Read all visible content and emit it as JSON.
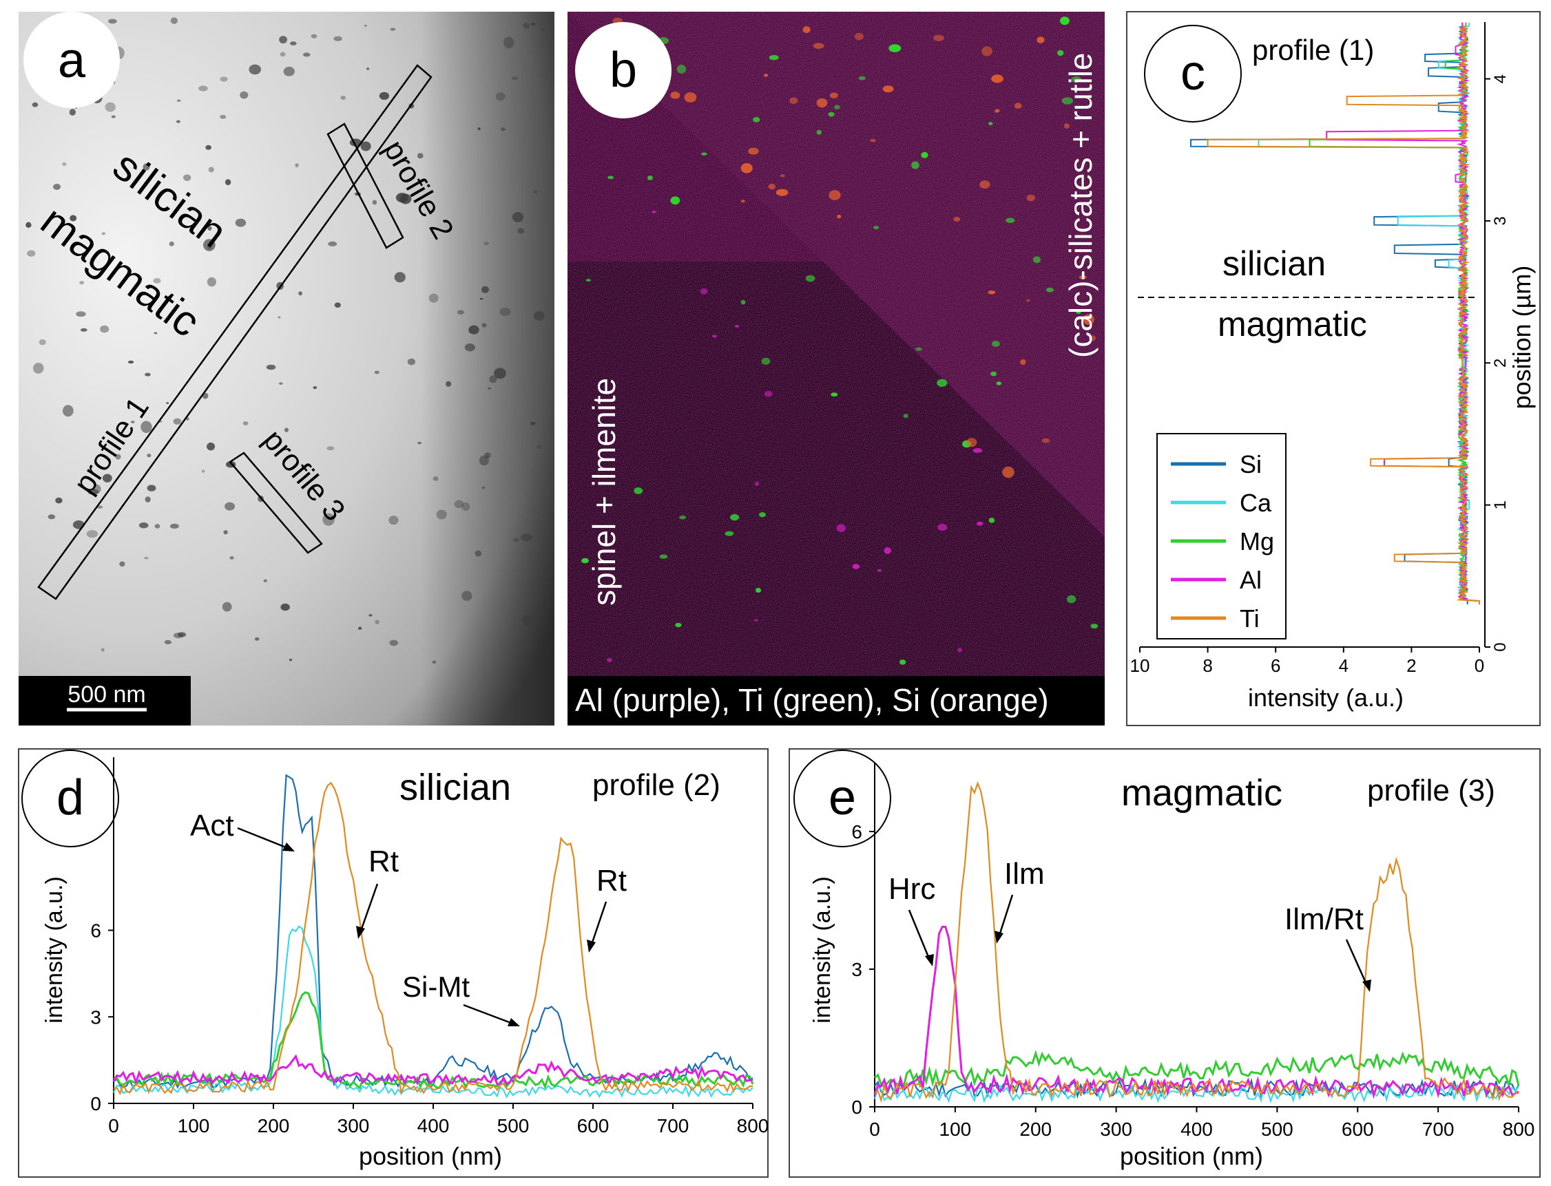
{
  "panel_a": {
    "letter": "a",
    "zone_upper": "silician",
    "zone_lower": "magmatic",
    "profile1": "profile 1",
    "profile2": "profile 2",
    "profile3": "profile 3",
    "scalebar": "500 nm"
  },
  "panel_b": {
    "letter": "b",
    "label_upper": "(calc)-silicates + rutile",
    "label_lower": "spinel + ilmenite",
    "caption": "Al (purple), Ti (green), Si (orange)",
    "colors": {
      "Al": "#d020c0",
      "Ti": "#30e030",
      "Si": "#e06030",
      "background": "#3a0a2a"
    }
  },
  "panel_c": {
    "letter": "c",
    "title": "profile (1)",
    "zone_upper": "silician",
    "zone_lower": "magmatic",
    "xlabel": "intensity (a.u.)",
    "ylabel": "position (µm)",
    "xticks": [
      "10",
      "8",
      "6",
      "4",
      "2",
      "0"
    ],
    "yticks": [
      "0",
      "1",
      "2",
      "3",
      "4"
    ],
    "legend": [
      {
        "name": "Si",
        "color": "#1a6fb0"
      },
      {
        "name": "Ca",
        "color": "#3fd8e8"
      },
      {
        "name": "Mg",
        "color": "#33cc33"
      },
      {
        "name": "Al",
        "color": "#e020e0"
      },
      {
        "name": "Ti",
        "color": "#e08a20"
      }
    ]
  },
  "panel_d": {
    "letter": "d",
    "title": "silician",
    "profile": "profile (2)",
    "xlabel": "position (nm)",
    "ylabel": "intensity (a.u.)",
    "xticks": [
      "0",
      "100",
      "200",
      "300",
      "400",
      "500",
      "600",
      "700",
      "800"
    ],
    "yticks": [
      "0",
      "3",
      "6"
    ],
    "annotations": [
      "Act",
      "Rt",
      "Rt",
      "Si-Mt"
    ]
  },
  "panel_e": {
    "letter": "e",
    "title": "magmatic",
    "profile": "profile (3)",
    "xlabel": "position (nm)",
    "ylabel": "intensity (a.u.)",
    "xticks": [
      "0",
      "100",
      "200",
      "300",
      "400",
      "500",
      "600",
      "700",
      "800"
    ],
    "yticks": [
      "0",
      "3",
      "6"
    ],
    "annotations": [
      "Hrc",
      "Ilm",
      "Ilm/Rt"
    ]
  },
  "chart_data": [
    {
      "type": "line",
      "id": "c",
      "orientation": "vertical",
      "title": "profile (1)",
      "xlabel": "intensity (a.u.)",
      "ylabel": "position (µm)",
      "xlim": [
        10,
        0
      ],
      "ylim": [
        0,
        4.4
      ],
      "series": [
        {
          "name": "Si",
          "color": "#1a6fb0",
          "points": [
            [
              0,
              0.3
            ],
            [
              0.35,
              0.3
            ],
            [
              2.2,
              0.63
            ],
            [
              0.4,
              1.0
            ],
            [
              0.9,
              1.3
            ],
            [
              0.4,
              2.0
            ],
            [
              1.3,
              2.7
            ],
            [
              2.5,
              2.8
            ],
            [
              3.1,
              3.0
            ],
            [
              0.4,
              3.3
            ],
            [
              8.5,
              3.55
            ],
            [
              1.2,
              3.8
            ],
            [
              1.5,
              4.05
            ],
            [
              1.6,
              4.15
            ],
            [
              0.4,
              4.4
            ]
          ]
        },
        {
          "name": "Ca",
          "color": "#3fd8e8",
          "points": [
            [
              0,
              0.3
            ],
            [
              0.3,
              1.0
            ],
            [
              0.9,
              2.7
            ],
            [
              2.4,
              3.0
            ],
            [
              6.5,
              3.55
            ],
            [
              1.2,
              4.1
            ],
            [
              0.3,
              4.4
            ]
          ]
        },
        {
          "name": "Mg",
          "color": "#33cc33",
          "points": [
            [
              0,
              0.3
            ],
            [
              0.6,
              1.5
            ],
            [
              0.5,
              2.0
            ],
            [
              0.6,
              2.5
            ],
            [
              5.0,
              3.55
            ],
            [
              1.0,
              4.1
            ],
            [
              0.5,
              4.4
            ]
          ]
        },
        {
          "name": "Al",
          "color": "#e020e0",
          "points": [
            [
              0,
              0.3
            ],
            [
              0.4,
              0.63
            ],
            [
              2.8,
              1.3
            ],
            [
              0.4,
              2.0
            ],
            [
              0.7,
              3.3
            ],
            [
              4.5,
              3.6
            ],
            [
              0.7,
              4.2
            ],
            [
              0.5,
              4.4
            ]
          ]
        },
        {
          "name": "Ti",
          "color": "#e08a20",
          "points": [
            [
              0,
              0.3
            ],
            [
              2.5,
              0.63
            ],
            [
              3.2,
              1.3
            ],
            [
              0.5,
              2.0
            ],
            [
              8.0,
              3.55
            ],
            [
              3.9,
              3.85
            ],
            [
              0.4,
              4.4
            ]
          ]
        }
      ]
    },
    {
      "type": "line",
      "id": "d",
      "title": "silician",
      "xlabel": "position (nm)",
      "ylabel": "intensity (a.u.)",
      "xlim": [
        0,
        800
      ],
      "ylim": [
        0,
        12
      ],
      "series": [
        {
          "name": "Si",
          "color": "#1a6fb0",
          "x": [
            0,
            100,
            195,
            205,
            215,
            225,
            235,
            250,
            260,
            275,
            300,
            400,
            420,
            450,
            500,
            520,
            540,
            555,
            570,
            600,
            700,
            760,
            800
          ],
          "y": [
            0.7,
            0.7,
            0.8,
            5,
            11.5,
            11.2,
            9.5,
            9.8,
            2,
            0.8,
            0.8,
            0.7,
            1.6,
            1.3,
            0.8,
            2.2,
            3.2,
            3.3,
            1.5,
            0.8,
            0.9,
            1.7,
            0.8
          ]
        },
        {
          "name": "Ca",
          "color": "#3fd8e8",
          "x": [
            0,
            195,
            210,
            220,
            235,
            250,
            265,
            300,
            500,
            540,
            600,
            800
          ],
          "y": [
            0.5,
            0.6,
            3,
            6.0,
            6.1,
            5.0,
            0.8,
            0.5,
            0.4,
            0.5,
            0.4,
            0.4
          ]
        },
        {
          "name": "Mg",
          "color": "#33cc33",
          "x": [
            0,
            195,
            210,
            225,
            240,
            255,
            265,
            300,
            800
          ],
          "y": [
            0.8,
            0.9,
            2,
            3.0,
            3.8,
            3.2,
            0.9,
            0.7,
            0.8
          ]
        },
        {
          "name": "Al",
          "color": "#e020e0",
          "x": [
            0,
            200,
            225,
            245,
            270,
            300,
            500,
            540,
            600,
            720,
            800
          ],
          "y": [
            0.9,
            0.9,
            1.5,
            1.3,
            0.9,
            0.9,
            0.8,
            1.3,
            0.8,
            1.1,
            0.9
          ]
        },
        {
          "name": "Ti",
          "color": "#e08a20",
          "x": [
            0,
            200,
            230,
            255,
            270,
            285,
            315,
            360,
            500,
            530,
            560,
            575,
            590,
            610,
            800
          ],
          "y": [
            0.5,
            0.6,
            4,
            9.5,
            11.4,
            10,
            5.2,
            0.5,
            0.6,
            4,
            9.2,
            9.0,
            4,
            0.6,
            0.6
          ]
        }
      ]
    },
    {
      "type": "line",
      "id": "e",
      "title": "magmatic",
      "xlabel": "position (nm)",
      "ylabel": "intensity (a.u.)",
      "xlim": [
        0,
        800
      ],
      "ylim": [
        0,
        7.5
      ],
      "series": [
        {
          "name": "Si",
          "color": "#1a6fb0",
          "x": [
            0,
            800
          ],
          "y": [
            0.4,
            0.4
          ]
        },
        {
          "name": "Ca",
          "color": "#3fd8e8",
          "x": [
            0,
            800
          ],
          "y": [
            0.3,
            0.3
          ]
        },
        {
          "name": "Mg",
          "color": "#33cc33",
          "x": [
            0,
            160,
            170,
            300,
            650,
            800
          ],
          "y": [
            0.6,
            0.7,
            1.1,
            0.7,
            1.0,
            0.6
          ]
        },
        {
          "name": "Al",
          "color": "#e020e0",
          "x": [
            0,
            60,
            75,
            85,
            95,
            110,
            800
          ],
          "y": [
            0.4,
            0.5,
            3.0,
            4.2,
            3.5,
            0.5,
            0.4
          ]
        },
        {
          "name": "Ti",
          "color": "#e08a20",
          "x": [
            0,
            90,
            105,
            120,
            130,
            140,
            155,
            170,
            600,
            615,
            630,
            650,
            660,
            670,
            685,
            800
          ],
          "y": [
            0.3,
            0.4,
            4,
            6.8,
            7.3,
            6.0,
            2,
            0.4,
            0.4,
            4,
            5.0,
            5.3,
            4.5,
            3.0,
            0.5,
            0.3
          ]
        }
      ]
    }
  ]
}
